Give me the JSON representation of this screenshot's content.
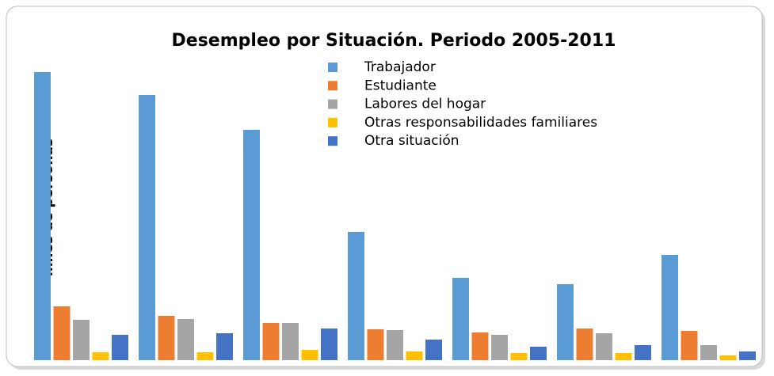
{
  "chart_data": {
    "type": "bar",
    "title": "Desempleo por Situación. Periodo 2005-2011",
    "y_label": "miles de personas",
    "categories": [
      null,
      null,
      null,
      null,
      null,
      null,
      null
    ],
    "ylim": [
      0,
      370
    ],
    "series": [
      {
        "name": "Trabajador",
        "color": "#5b9bd5",
        "values": [
          364,
          335,
          291,
          162,
          104,
          96,
          133
        ]
      },
      {
        "name": "Estudiante",
        "color": "#ed7d31",
        "values": [
          68,
          56,
          47,
          39,
          35,
          40,
          37
        ]
      },
      {
        "name": "Labores del hogar",
        "color": "#a5a5a5",
        "values": [
          51,
          52,
          47,
          38,
          32,
          34,
          19
        ]
      },
      {
        "name": "Otras responsabilidades familiares",
        "color": "#ffc000",
        "values": [
          10,
          10,
          13,
          11,
          9,
          9,
          6
        ]
      },
      {
        "name": "Otra situación",
        "color": "#4472c4",
        "values": [
          32,
          34,
          40,
          26,
          17,
          19,
          11
        ]
      }
    ]
  }
}
